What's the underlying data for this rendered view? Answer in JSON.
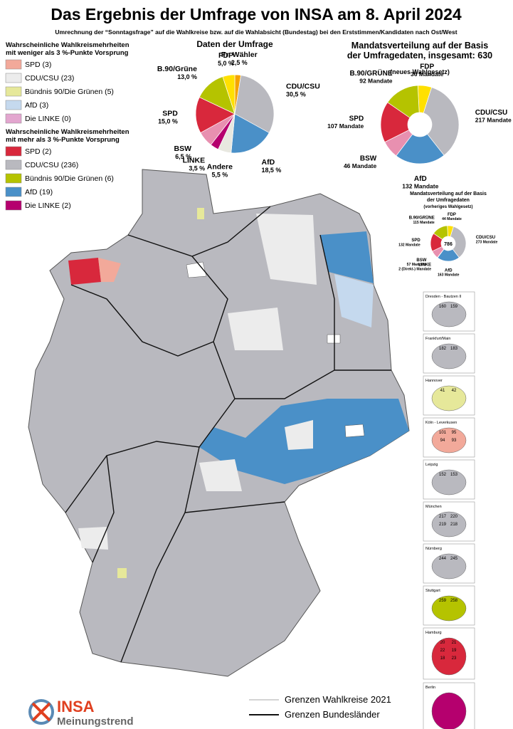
{
  "header": {
    "title": "Das Ergebnis der Umfrage von INSA am 8. April 2024",
    "subtitle": "Umrechnung der “Sonntagsfrage” auf die Wahlkreise bzw. auf die Wahlabsicht (Bundestag) bei den Erststimmen/Kandidaten nach Ost/West"
  },
  "legend_close": {
    "title": [
      "Wahrscheinliche Wahlkreismehrheiten",
      "mit weniger als 3 %-Punkte Vorsprung"
    ],
    "items": [
      {
        "label": "SPD (3)",
        "color": "#f2a99a"
      },
      {
        "label": "CDU/CSU (23)",
        "color": "#ececec"
      },
      {
        "label": "Bündnis 90/Die Grünen (5)",
        "color": "#e6e89a"
      },
      {
        "label": "AfD (3)",
        "color": "#c5d9ee"
      },
      {
        "label": "Die LINKE (0)",
        "color": "#e3a6cf"
      }
    ]
  },
  "legend_clear": {
    "title": [
      "Wahrscheinliche Wahlkreismehrheiten",
      "mit mehr als 3 %-Punkte Vorsprung"
    ],
    "items": [
      {
        "label": "SPD (2)",
        "color": "#d8283c"
      },
      {
        "label": "CDU/CSU (236)",
        "color": "#b9b9bf"
      },
      {
        "label": "Bündnis 90/Die Grünen (6)",
        "color": "#b5c300"
      },
      {
        "label": "AfD (19)",
        "color": "#4a90c8"
      },
      {
        "label": "Die LINKE (2)",
        "color": "#b5006e"
      }
    ]
  },
  "survey_pie": {
    "type": "pie",
    "title": "Daten der Umfrage",
    "categories": [
      "Fr. Wähler",
      "CDU/CSU",
      "AfD",
      "Andere",
      "LINKE",
      "BSW",
      "SPD",
      "B.90/Grüne",
      "FDP"
    ],
    "values": [
      2.5,
      30.5,
      18.5,
      5.5,
      3.5,
      6.5,
      15.0,
      13.0,
      5.0
    ],
    "value_labels": [
      "2,5 %",
      "30,5 %",
      "18,5 %",
      "5,5 %",
      "3,5 %",
      "6,5 %",
      "15,0 %",
      "13,0 %",
      "5,0 %"
    ],
    "colors": [
      "#f5a300",
      "#b9b9bf",
      "#4a90c8",
      "#e8e8e0",
      "#b5006e",
      "#e890b0",
      "#d8283c",
      "#b5c300",
      "#ffe000"
    ]
  },
  "seats_new": {
    "type": "donut",
    "title": [
      "Mandatsverteilung auf der Basis",
      "der Umfragedaten, insgesamt: 630"
    ],
    "subtitle": "(neues Wahlgesetz)",
    "categories": [
      "FDP",
      "CDU/CSU",
      "AfD",
      "BSW",
      "SPD",
      "B.90/GRÜNE"
    ],
    "values": [
      36,
      217,
      132,
      46,
      107,
      92
    ],
    "value_labels": [
      "36 Mandate",
      "217 Mandate",
      "132 Mandate",
      "46 Mandate",
      "107 Mandate",
      "92 Mandate"
    ],
    "colors": [
      "#ffe000",
      "#b9b9bf",
      "#4a90c8",
      "#e890b0",
      "#d8283c",
      "#b5c300"
    ]
  },
  "seats_old": {
    "type": "donut",
    "title": [
      "Mandatsverteilung auf der Basis",
      "der Umfragedaten"
    ],
    "subtitle": "(vorheriges Wahlgesetz)",
    "total_label": "786",
    "categories": [
      "FDP",
      "CDU/CSU",
      "AfD",
      "LINKE",
      "BSW",
      "SPD",
      "B.90/GRÜNE"
    ],
    "values": [
      44,
      273,
      163,
      2,
      57,
      132,
      115
    ],
    "value_labels": [
      "44 Mandate",
      "273 Mandate",
      "163 Mandate",
      "2 (Direkt-) Mandate",
      "57 Mandate",
      "132 Mandate",
      "115 Mandate"
    ],
    "colors": [
      "#ffe000",
      "#b9b9bf",
      "#4a90c8",
      "#b5006e",
      "#e890b0",
      "#d8283c",
      "#b5c300"
    ]
  },
  "insets": [
    {
      "name": "Dresden - Bautzen II",
      "labels": [
        "160",
        "159"
      ]
    },
    {
      "name": "Frankfurt/Main",
      "labels": [
        "182",
        "183"
      ]
    },
    {
      "name": "Hannover",
      "labels": [
        "41",
        "42"
      ]
    },
    {
      "name": "Köln - Leverkusen",
      "labels": [
        "101",
        "95",
        "94",
        "93"
      ]
    },
    {
      "name": "Leipzig",
      "labels": [
        "152",
        "153"
      ]
    },
    {
      "name": "München",
      "labels": [
        "217",
        "220",
        "219",
        "218"
      ]
    },
    {
      "name": "Nürnberg",
      "labels": [
        "244",
        "245"
      ]
    },
    {
      "name": "Stuttgart",
      "labels": [
        "259",
        "258"
      ]
    },
    {
      "name": "Hamburg",
      "labels": [
        "20",
        "21",
        "22",
        "19",
        "18",
        "23"
      ]
    },
    {
      "name": "Berlin",
      "labels": []
    }
  ],
  "map_legend": {
    "constituencies": "Grenzen Wahlkreise 2021",
    "states": "Grenzen Bundesländer"
  },
  "logo": {
    "brand": "INSA",
    "sub": "Meinungstrend"
  }
}
